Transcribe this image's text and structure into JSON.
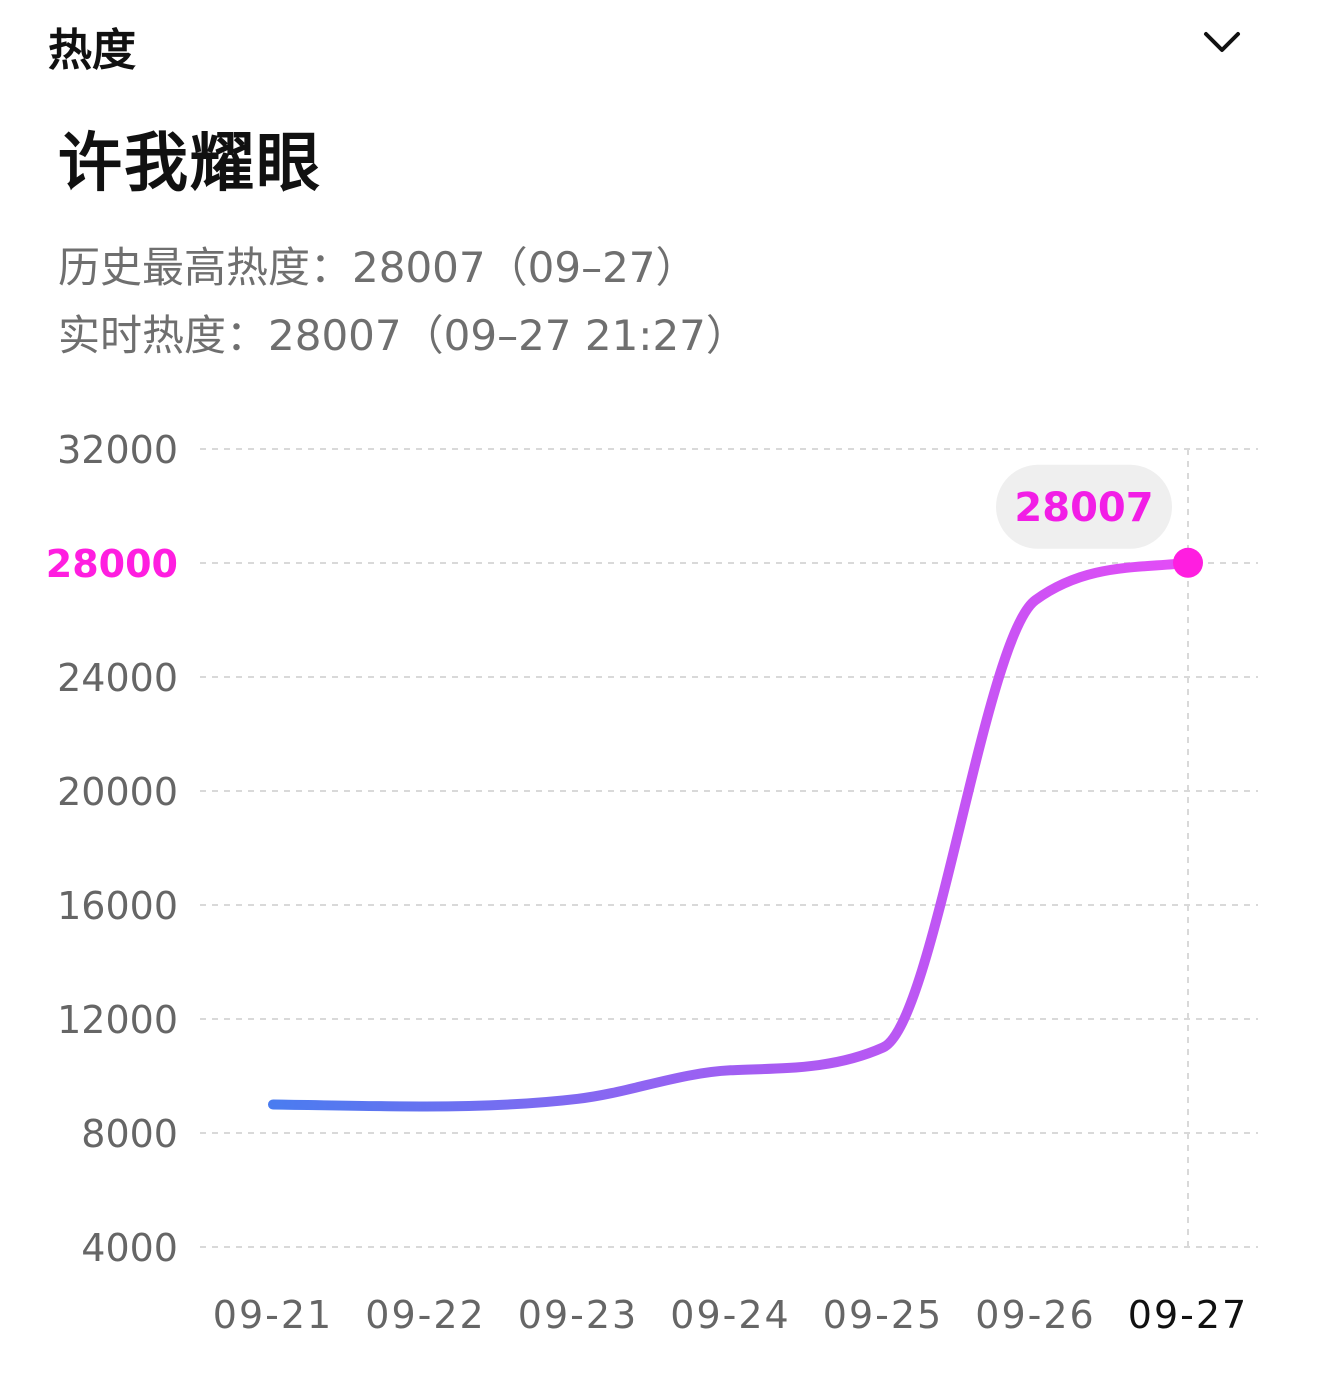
{
  "header": {
    "title": "热度",
    "toggle_icon": "chevron-down-icon"
  },
  "song": {
    "title": "许我耀眼"
  },
  "stats": {
    "peak_label": "历史最高热度：",
    "peak_value": "28007",
    "peak_date": "（09–27）",
    "live_label": "实时热度：",
    "live_value": "28007",
    "live_date": "（09–27 21:27）"
  },
  "colors": {
    "line_start": "#4a7cf0",
    "line_mid": "#a85cf2",
    "line_end": "#e44cf6",
    "highlight": "#ff1ee0",
    "grid": "#d9d9d9"
  },
  "chart_data": {
    "type": "line",
    "title": "",
    "xlabel": "",
    "ylabel": "",
    "categories": [
      "09-21",
      "09-22",
      "09-23",
      "09-24",
      "09-25",
      "09-26",
      "09-27"
    ],
    "series": [
      {
        "values": [
          9000,
          8930,
          9200,
          10200,
          11000,
          26700,
          28007
        ]
      }
    ],
    "yticks": [
      "4000",
      "8000",
      "12000",
      "16000",
      "20000",
      "24000",
      "28000",
      "32000"
    ],
    "ylim": [
      4000,
      32000
    ],
    "highlight": {
      "category": "09-27",
      "value": 28007,
      "label": "28007",
      "ytick": "28000"
    },
    "grid": true,
    "grid_style": "dashed",
    "legend": "none"
  }
}
